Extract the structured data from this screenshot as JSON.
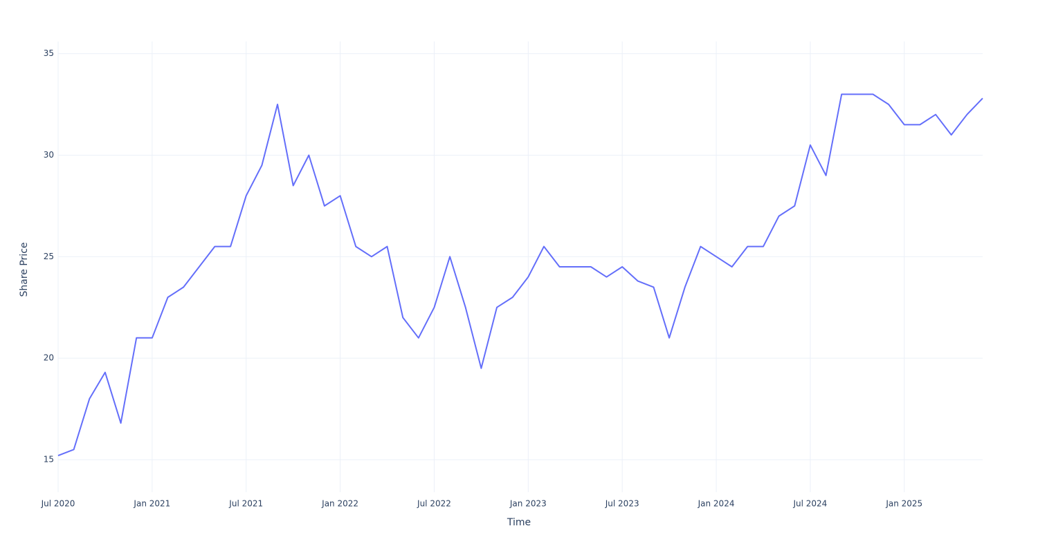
{
  "chart_data": {
    "type": "line",
    "x_title": "Time",
    "y_title": "Share Price",
    "x": [
      "2020-07",
      "2020-08",
      "2020-09",
      "2020-10",
      "2020-11",
      "2020-12",
      "2021-01",
      "2021-02",
      "2021-03",
      "2021-04",
      "2021-05",
      "2021-06",
      "2021-07",
      "2021-08",
      "2021-09",
      "2021-10",
      "2021-11",
      "2021-12",
      "2022-01",
      "2022-02",
      "2022-03",
      "2022-04",
      "2022-05",
      "2022-06",
      "2022-07",
      "2022-08",
      "2022-09",
      "2022-10",
      "2022-11",
      "2022-12",
      "2023-01",
      "2023-02",
      "2023-03",
      "2023-04",
      "2023-05",
      "2023-06",
      "2023-07",
      "2023-08",
      "2023-09",
      "2023-10",
      "2023-11",
      "2023-12",
      "2024-01",
      "2024-02",
      "2024-03",
      "2024-04",
      "2024-05",
      "2024-06",
      "2024-07",
      "2024-08",
      "2024-09",
      "2024-10",
      "2024-11",
      "2024-12",
      "2025-01",
      "2025-02",
      "2025-03",
      "2025-04",
      "2025-05",
      "2025-06"
    ],
    "series": [
      {
        "name": "Share Price",
        "color": "#636efa",
        "values": [
          15.2,
          15.5,
          18.0,
          19.3,
          16.8,
          21.0,
          21.0,
          23.0,
          23.5,
          24.5,
          25.5,
          25.5,
          28.0,
          29.5,
          32.5,
          28.5,
          30.0,
          27.5,
          28.0,
          25.5,
          25.0,
          25.5,
          22.0,
          21.0,
          22.5,
          25.0,
          22.5,
          19.5,
          22.5,
          23.0,
          24.0,
          25.5,
          24.5,
          24.5,
          24.5,
          24.0,
          24.5,
          23.8,
          23.5,
          21.0,
          23.5,
          25.5,
          25.0,
          24.5,
          25.5,
          25.5,
          27.0,
          27.5,
          30.5,
          29.0,
          33.0,
          33.0,
          33.0,
          32.5,
          31.5,
          31.5,
          32.0,
          31.0,
          32.0,
          32.8
        ]
      }
    ],
    "xlim": [
      "2020-07",
      "2025-06"
    ],
    "xticks": [
      {
        "value": "2020-07",
        "label": "Jul 2020"
      },
      {
        "value": "2021-01",
        "label": "Jan 2021"
      },
      {
        "value": "2021-07",
        "label": "Jul 2021"
      },
      {
        "value": "2022-01",
        "label": "Jan 2022"
      },
      {
        "value": "2022-07",
        "label": "Jul 2022"
      },
      {
        "value": "2023-01",
        "label": "Jan 2023"
      },
      {
        "value": "2023-07",
        "label": "Jul 2023"
      },
      {
        "value": "2024-01",
        "label": "Jan 2024"
      },
      {
        "value": "2024-07",
        "label": "Jul 2024"
      },
      {
        "value": "2025-01",
        "label": "Jan 2025"
      }
    ],
    "ylim": [
      13.4,
      35.6
    ],
    "yticks": [
      15,
      20,
      25,
      30,
      35
    ],
    "grid": true
  }
}
